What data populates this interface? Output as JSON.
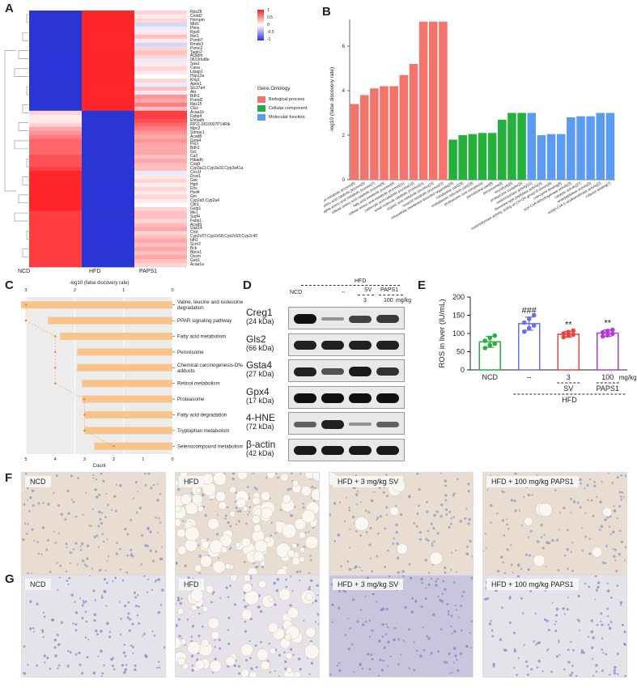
{
  "panels": {
    "A": "A",
    "B": "B",
    "C": "C",
    "D": "D",
    "E": "E",
    "F": "F",
    "G": "G"
  },
  "heatmap": {
    "genes": [
      "Rps28",
      "Creld2",
      "Hnrnpm",
      "Mbl1",
      "Ptms",
      "Rps6",
      "Rer1",
      "Psmb7",
      "Rmdn3",
      "Psmc2",
      "Tagln2",
      "Acadm",
      "0610rlut8e",
      "Saa1",
      "Cana",
      "Lrpap1",
      "Hsp13a",
      "Khg1",
      "Apex1",
      "Slc37a4",
      "Akr",
      "Bdh1",
      "Psmd2",
      "Rps15",
      "Ctsz",
      "Acaa1b",
      "Fabp4",
      "Ehhadh",
      "RP11-0610007P14Rik",
      "Mpc2",
      "Sdmar1",
      "Acad8",
      "Gsta4",
      "Pecr",
      "Bdh1",
      "Gcl",
      "Ca3",
      "Hibadh",
      "Coq9",
      "Cyp3a11;Cyp3a16;Cyp3a41a",
      "Ces1f",
      "Dcxr1",
      "Gsk",
      "Hgd",
      "Ehs",
      "Hsd4",
      "Gm",
      "Cyp2a5;Cyp2a4",
      "Cbr1",
      "Gstp1",
      "Me1",
      "Surf4",
      "Fabp1",
      "Acad9",
      "Uap14",
      "Crot",
      "Cyp2c67;Cyp2c68;Cyp2c69;Cyp2c40",
      "Idh1",
      "Scrn2",
      "Bck",
      "Bbox1",
      "Oxsm",
      "Gstt1",
      "Acaa1a"
    ],
    "columns": [
      "NCD",
      "HFD",
      "PAPS1"
    ],
    "values": [
      [
        -1,
        1,
        0.2
      ],
      [
        -1,
        1,
        0.1
      ],
      [
        -1,
        1,
        0.2
      ],
      [
        -1,
        1,
        -0.2
      ],
      [
        -1,
        1,
        -0.1
      ],
      [
        -1,
        1,
        0.1
      ],
      [
        -1,
        1,
        0.3
      ],
      [
        -1,
        1,
        0.1
      ],
      [
        -1,
        1,
        -0.2
      ],
      [
        -1,
        1,
        0.2
      ],
      [
        -1,
        1,
        0.3
      ],
      [
        -1,
        1,
        0.2
      ],
      [
        -1,
        1,
        -0.1
      ],
      [
        -1,
        1,
        0.1
      ],
      [
        -1,
        1,
        0.2
      ],
      [
        -1,
        1,
        0.1
      ],
      [
        -1,
        1,
        0
      ],
      [
        -1,
        1,
        0.2
      ],
      [
        -1,
        1,
        -0.1
      ],
      [
        -1,
        1,
        0.3
      ],
      [
        -1,
        1,
        0.1
      ],
      [
        -1,
        1,
        0.5
      ],
      [
        -1,
        1,
        0.4
      ],
      [
        -1,
        1,
        0.6
      ],
      [
        -1,
        1,
        0.3
      ],
      [
        0.2,
        -1,
        0.9
      ],
      [
        0.1,
        -1,
        0.9
      ],
      [
        0.1,
        -1,
        0.8
      ],
      [
        0.2,
        -1,
        0.7
      ],
      [
        0.4,
        -1,
        0.6
      ],
      [
        0.5,
        -1,
        0.5
      ],
      [
        0.6,
        -1,
        0.4
      ],
      [
        0.7,
        -1,
        0.5
      ],
      [
        0.7,
        -1,
        0.4
      ],
      [
        0.7,
        -1,
        0.4
      ],
      [
        0.7,
        -1,
        0.4
      ],
      [
        0.8,
        -1,
        0.3
      ],
      [
        0.8,
        -1,
        0.4
      ],
      [
        0.8,
        -1,
        0.3
      ],
      [
        0.9,
        -1,
        0.3
      ],
      [
        1,
        -1,
        -0.1
      ],
      [
        1,
        -1,
        0.1
      ],
      [
        1,
        -1,
        0.2
      ],
      [
        1,
        -1,
        0.1
      ],
      [
        1,
        -1,
        0.2
      ],
      [
        1,
        -1,
        0.1
      ],
      [
        1,
        -1,
        0.2
      ],
      [
        1,
        -1,
        0.1
      ],
      [
        1,
        -1,
        0
      ],
      [
        1,
        -1,
        0.2
      ],
      [
        0.9,
        -1,
        0.3
      ],
      [
        0.9,
        -1,
        0.3
      ],
      [
        0.9,
        -1,
        0.2
      ],
      [
        0.9,
        -1,
        0.3
      ],
      [
        0.9,
        -1,
        0.4
      ],
      [
        0.9,
        -1,
        0.2
      ],
      [
        0.9,
        -1,
        0.3
      ],
      [
        0.9,
        -1,
        0.4
      ],
      [
        0.9,
        -1,
        0.3
      ],
      [
        0.9,
        -1,
        0.4
      ],
      [
        0.9,
        -1,
        0.3
      ],
      [
        0.9,
        -1,
        0.4
      ],
      [
        0.9,
        -1,
        0.3
      ],
      [
        0.9,
        -1,
        0.2
      ]
    ],
    "legend_ticks": [
      "1",
      "0.5",
      "0",
      "-0.5",
      "-1"
    ],
    "row_scale": [
      "1",
      "0.5",
      "0",
      "-0.5",
      "-1"
    ]
  },
  "legend_ontology": {
    "title": "Gene.Ontology",
    "items": [
      {
        "label": "Biological process",
        "color": "#f4736a"
      },
      {
        "label": "Cellular component",
        "color": "#23b13b"
      },
      {
        "label": "Molecular function",
        "color": "#5b9bf0"
      }
    ]
  },
  "chart_data": [
    {
      "type": "bar",
      "panel": "B",
      "ylabel": "-log10 (false discovery rate)",
      "ylim": [
        0,
        7.2
      ],
      "yticks": [
        "0",
        "2",
        "4",
        "6"
      ],
      "categories": [
        "dicarboxylic acid metabolic process[6]",
        "alpha-amino acid catabolic process[5]",
        "alpha-amino acid metabolic process[7]",
        "cellular amino acid catabolic process[6]",
        "fatty acid metabolic process[9]",
        "cellular amino acid metabolic process[11]",
        "carboxylic acid catabolic process[10]",
        "small molecule catabolic process[11]",
        "organic acid metabolic process[22]",
        "oxoacid metabolic process[22]",
        "intracellular membrane-bounded organelle[28]",
        "cytoplasmic part[28]",
        "endoplasmic reticulum part[18]",
        "proteasome core complex[4]",
        "peroxisomal part[8]",
        "peroxisome[9]",
        "microbody[9]",
        "proteasome complex[5]",
        "oxidoreductase activity[11]",
        "threonine-type peptidase activity[4]",
        "oxidoreductase activity, acting on CH-OH group of donors[6]",
        "coenzyme binding[6]",
        "acyl-CoA dehydrogenase activity[3]",
        "catalytic activity[27]",
        "endopeptidase activity[5]",
        "acetyl-CoA C-acyltransferase activity[2]",
        "cofactor binding[7]"
      ],
      "values": [
        3.4,
        3.8,
        4.1,
        4.2,
        4.2,
        4.7,
        5.2,
        7.1,
        7.1,
        7.1,
        1.8,
        2.0,
        2.05,
        2.1,
        2.1,
        2.7,
        3.0,
        3.0,
        3.0,
        2.0,
        2.05,
        2.05,
        2.8,
        2.85,
        2.85,
        3.0,
        3.0
      ],
      "colors_by_group": [
        "#f4736a",
        "#23b13b",
        "#5b9bf0"
      ],
      "groups": [
        0,
        0,
        0,
        0,
        0,
        0,
        0,
        0,
        0,
        0,
        1,
        1,
        1,
        1,
        1,
        1,
        1,
        1,
        2,
        2,
        2,
        2,
        2,
        2,
        2,
        2,
        2
      ]
    },
    {
      "type": "bar",
      "panel": "C",
      "title": "-log10 (false discovery rate)",
      "xlabel": "Count",
      "top_ticks": [
        "3",
        "2",
        "1",
        "0"
      ],
      "bottom_ticks": [
        "5",
        "4",
        "3",
        "2",
        "1",
        "0"
      ],
      "categories": [
        "Valine, leucine and isoleucine degradation",
        "PPAR signaling pathway",
        "Fatty acid metabolism",
        "Peroxisome",
        "Chemical carcinogenesis-DNA adducts",
        "Retinol metabolism",
        "Proteasome",
        "Fatty acid degradation",
        "Tryptophan metabolism",
        "Selenocompound metabolism"
      ],
      "fdr_values": [
        3.1,
        2.55,
        2.3,
        1.95,
        1.95,
        1.85,
        1.85,
        1.8,
        1.8,
        1.6
      ],
      "count_values": [
        5,
        5,
        4,
        4,
        4,
        4,
        3,
        3,
        3,
        2
      ]
    },
    {
      "type": "bar",
      "panel": "E",
      "ylabel": "ROS in liver (IU/mL)",
      "ylim": [
        0,
        200
      ],
      "yticks": [
        "0",
        "50",
        "100",
        "150",
        "200"
      ],
      "categories": [
        "NCD",
        "--",
        "3",
        "100"
      ],
      "unit_label": "mg/kg",
      "values": [
        77,
        127,
        98,
        101
      ],
      "errors": [
        15,
        18,
        8,
        9
      ],
      "points": [
        [
          60,
          68,
          72,
          80,
          88,
          94
        ],
        [
          105,
          115,
          122,
          130,
          140,
          150
        ],
        [
          90,
          94,
          97,
          100,
          104,
          108
        ],
        [
          92,
          95,
          99,
          103,
          107,
          110
        ]
      ],
      "colors": [
        "#23b13b",
        "#6b6fe0",
        "#e8453f",
        "#b23ad6"
      ],
      "annotations": [
        "",
        "###",
        "**",
        "**"
      ],
      "group_labels": {
        "sv": "SV",
        "paps": "PAPS1",
        "hfd": "HFD"
      }
    }
  ],
  "blot": {
    "header": {
      "hfd": "HFD",
      "ncd": "NCD",
      "dash": "--",
      "sv": "SV",
      "paps": "PAPS1",
      "dose_sv": "3",
      "dose_paps": "100",
      "unit": "mg/kg"
    },
    "rows": [
      {
        "name": "Creg1",
        "kda": "(24 kDa)"
      },
      {
        "name": "Gls2",
        "kda": "(66 kDa)"
      },
      {
        "name": "Gsta4",
        "kda": "(27 kDa)"
      },
      {
        "name": "Gpx4",
        "kda": "(17 kDa)"
      },
      {
        "name": "4-HNE",
        "kda": "(72 kDa)"
      },
      {
        "name": "β-actin",
        "kda": "(42 kDa)"
      }
    ]
  },
  "histology": {
    "F": [
      "NCD",
      "HFD",
      "HFD + 3 mg/kg SV",
      "HFD + 100 mg/kg PAPS1"
    ],
    "G": [
      "NCD",
      "HFD",
      "HFD + 3 mg/kg SV",
      "HFD + 100 mg/kg PAPS1"
    ]
  }
}
